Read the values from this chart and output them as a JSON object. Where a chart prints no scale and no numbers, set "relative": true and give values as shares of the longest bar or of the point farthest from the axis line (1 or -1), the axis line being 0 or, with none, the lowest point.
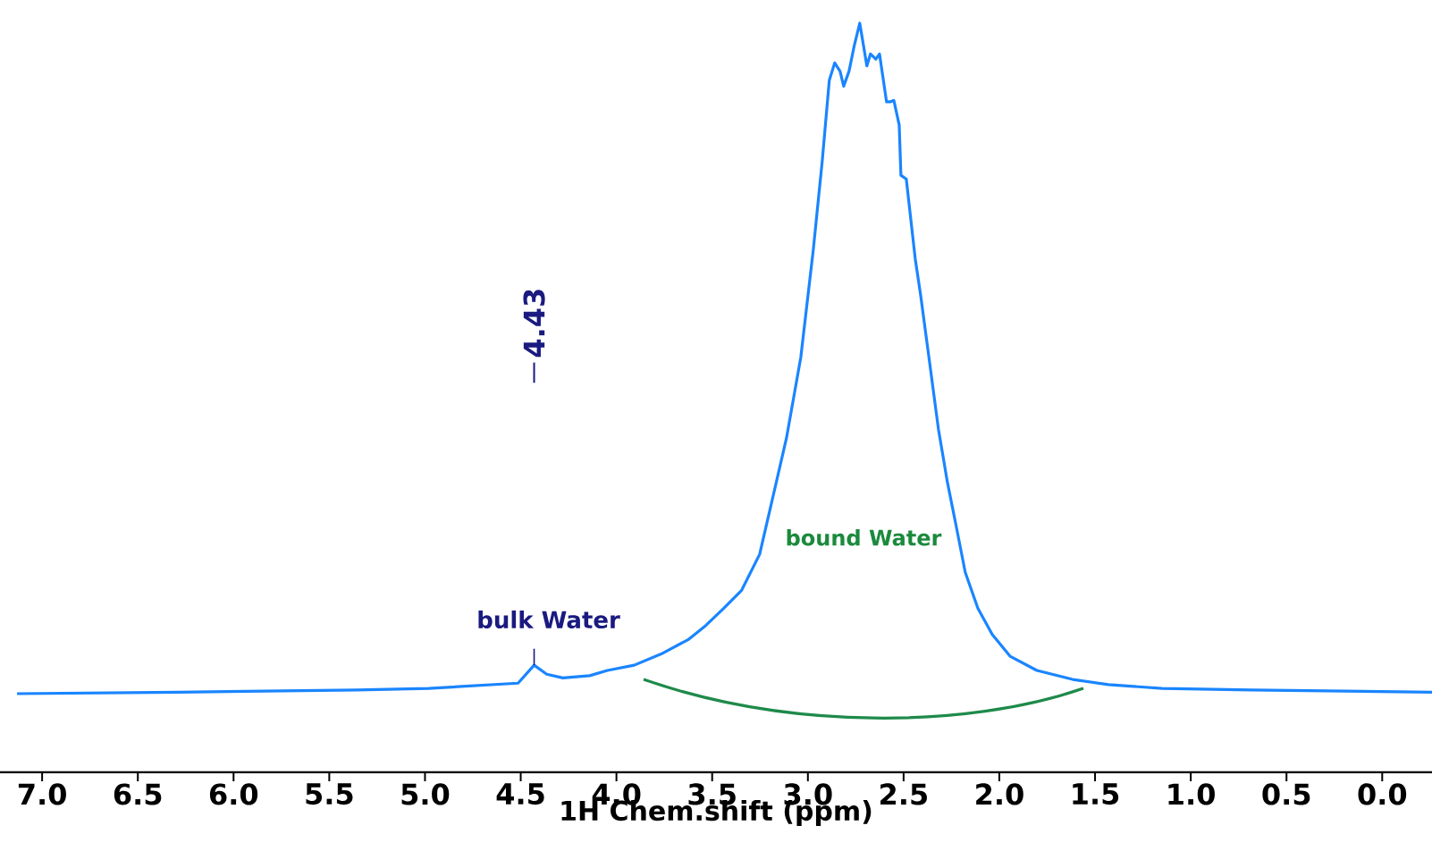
{
  "chart_data": {
    "type": "line",
    "relative": true,
    "xlabel": "1H Chem.shift (ppm)",
    "x": [
      7.131,
      6.29,
      5.355,
      4.981,
      4.514,
      4.43,
      4.364,
      4.28,
      4.14,
      4.047,
      3.907,
      3.766,
      3.626,
      3.533,
      3.439,
      3.346,
      3.252,
      3.187,
      3.112,
      3.037,
      2.972,
      2.925,
      2.888,
      2.86,
      2.832,
      2.813,
      2.785,
      2.757,
      2.729,
      2.71,
      2.692,
      2.673,
      2.645,
      2.626,
      2.589,
      2.57,
      2.551,
      2.523,
      2.514,
      2.486,
      2.439,
      2.411,
      2.374,
      2.318,
      2.271,
      2.224,
      2.178,
      2.112,
      2.037,
      1.944,
      1.804,
      1.617,
      1.43,
      1.15,
      0.682,
      -0.26
    ],
    "series": [
      {
        "color": "#1a85ff",
        "line_style": "solid",
        "values": [
          0.105,
          0.107,
          0.11,
          0.112,
          0.119,
          0.143,
          0.131,
          0.126,
          0.129,
          0.136,
          0.143,
          0.158,
          0.177,
          0.196,
          0.219,
          0.243,
          0.291,
          0.363,
          0.446,
          0.554,
          0.697,
          0.816,
          0.924,
          0.947,
          0.936,
          0.916,
          0.936,
          0.971,
          1,
          0.971,
          0.943,
          0.959,
          0.952,
          0.959,
          0.895,
          0.895,
          0.897,
          0.864,
          0.797,
          0.792,
          0.685,
          0.637,
          0.566,
          0.458,
          0.387,
          0.327,
          0.267,
          0.219,
          0.184,
          0.155,
          0.136,
          0.124,
          0.117,
          0.112,
          0.11,
          0.107
        ]
      }
    ],
    "xlim": [
      7.22,
      -0.26
    ],
    "xticks": [
      {
        "value": 7,
        "label": "7.0"
      },
      {
        "value": 6.5,
        "label": "6.5"
      },
      {
        "value": 6,
        "label": "6.0"
      },
      {
        "value": 5.5,
        "label": "5.5"
      },
      {
        "value": 5,
        "label": "5.0"
      },
      {
        "value": 4.5,
        "label": "4.5"
      },
      {
        "value": 4,
        "label": "4.0"
      },
      {
        "value": 3.5,
        "label": "3.5"
      },
      {
        "value": 3,
        "label": "3.0"
      },
      {
        "value": 2.5,
        "label": "2.5"
      },
      {
        "value": 2,
        "label": "2.0"
      },
      {
        "value": 1.5,
        "label": "1.5"
      },
      {
        "value": 1,
        "label": "1.0"
      },
      {
        "value": 0.5,
        "label": "0.5"
      },
      {
        "value": 0,
        "label": "0.0"
      }
    ],
    "annotations": [
      "4.43",
      {
        "text": "bulk Water",
        "x": 4.43,
        "y": 0.143
      },
      "bound Water"
    ]
  }
}
